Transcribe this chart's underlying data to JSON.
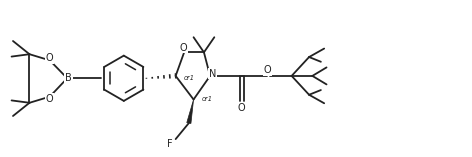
{
  "bg_color": "#ffffff",
  "line_color": "#222222",
  "lw": 1.3,
  "figsize": [
    4.72,
    1.57
  ],
  "dpi": 100,
  "xlim": [
    0,
    4.72
  ],
  "ylim": [
    0,
    1.57
  ]
}
